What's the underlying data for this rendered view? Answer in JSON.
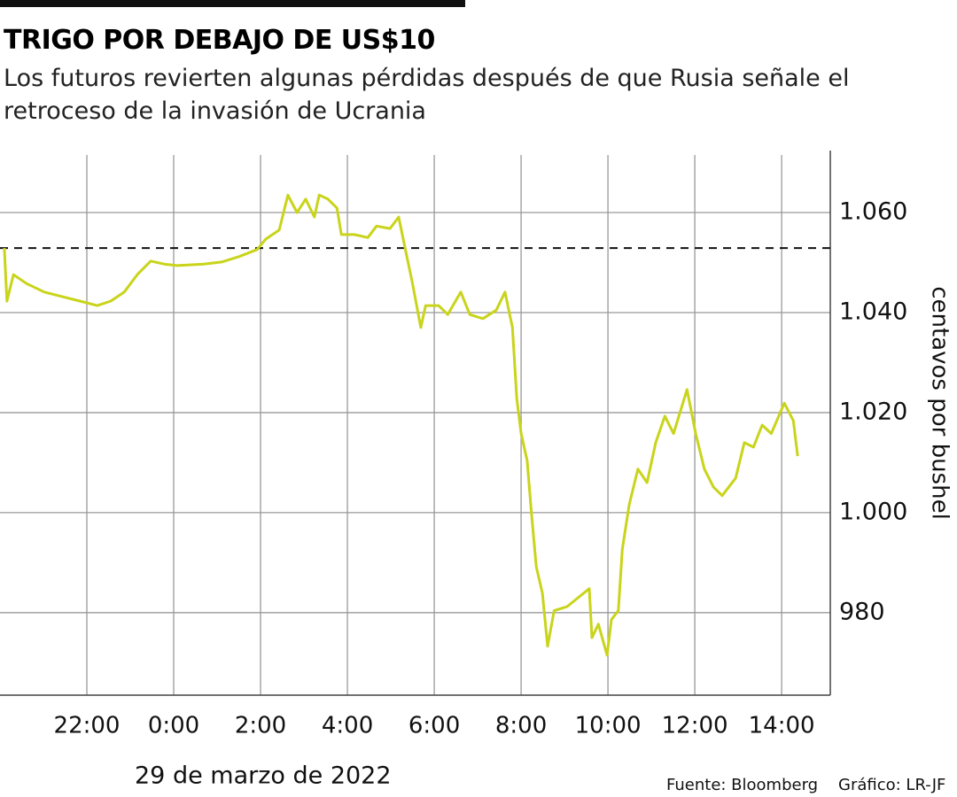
{
  "chart_data": {
    "type": "line",
    "title": "TRIGO POR DEBAJO DE US$10",
    "subtitle": "Los futuros revierten algunas pérdidas después de que Rusia señale el retroceso de la invasión de Ucrania",
    "ylabel": "centavos por bushel",
    "xlabel": "29 de marzo de 2022",
    "source": "Fuente: Bloomberg",
    "credit": "Gráfico: LR-JF",
    "x": [
      20.1,
      20.16,
      20.31,
      20.61,
      21.02,
      21.43,
      21.84,
      22.24,
      22.55,
      22.86,
      23.16,
      23.47,
      23.78,
      24.08,
      24.69,
      25.1,
      25.51,
      25.92,
      26.12,
      26.43,
      26.63,
      26.84,
      27.04,
      27.24,
      27.35,
      27.55,
      27.76,
      27.86,
      28.16,
      28.47,
      28.67,
      28.98,
      29.18,
      29.35,
      29.49,
      29.69,
      29.8,
      30.1,
      30.31,
      30.61,
      30.82,
      31.12,
      31.43,
      31.63,
      31.8,
      31.9,
      32.0,
      32.14,
      32.24,
      32.35,
      32.49,
      32.61,
      32.76,
      33.06,
      33.57,
      33.63,
      33.78,
      33.98,
      34.08,
      34.24,
      34.33,
      34.49,
      34.69,
      34.9,
      35.1,
      35.31,
      35.51,
      35.82,
      36.02,
      36.22,
      36.43,
      36.63,
      36.94,
      37.14,
      37.35,
      37.55,
      37.76,
      38.06,
      38.27,
      38.37
    ],
    "series": [
      {
        "color": "#c9d41a",
        "values": [
          1052.9,
          1042.3,
          1047.6,
          1045.8,
          1044.1,
          1043.2,
          1042.3,
          1041.4,
          1042.3,
          1044.1,
          1047.6,
          1050.3,
          1049.7,
          1049.4,
          1049.7,
          1050.1,
          1051.2,
          1052.6,
          1054.7,
          1056.5,
          1063.5,
          1060.0,
          1062.7,
          1059.1,
          1063.5,
          1062.7,
          1060.9,
          1055.6,
          1055.6,
          1055.0,
          1057.3,
          1056.8,
          1059.1,
          1052.0,
          1046.2,
          1037.0,
          1041.4,
          1041.4,
          1039.6,
          1044.1,
          1039.6,
          1038.8,
          1040.5,
          1044.1,
          1037.0,
          1022.8,
          1015.8,
          1010.4,
          999.8,
          989.2,
          983.9,
          973.3,
          980.4,
          981.2,
          984.8,
          975.0,
          977.7,
          971.5,
          978.6,
          980.4,
          992.7,
          1001.6,
          1008.7,
          1006.0,
          1014.0,
          1019.3,
          1015.8,
          1024.6,
          1015.8,
          1008.7,
          1005.1,
          1003.4,
          1006.9,
          1014.0,
          1013.1,
          1017.5,
          1015.8,
          1021.9,
          1018.4,
          1011.3
        ]
      }
    ],
    "reference_line": 1052.9,
    "xlim": [
      20,
      39.12
    ],
    "xticks": [
      {
        "value": 22,
        "label": "22:00"
      },
      {
        "value": 24,
        "label": "0:00"
      },
      {
        "value": 26,
        "label": "2:00"
      },
      {
        "value": 28,
        "label": "4:00"
      },
      {
        "value": 30,
        "label": "6:00"
      },
      {
        "value": 32,
        "label": "8:00"
      },
      {
        "value": 34,
        "label": "10:00"
      },
      {
        "value": 36,
        "label": "12:00"
      },
      {
        "value": 38,
        "label": "14:00"
      }
    ],
    "ylim": [
      963.5,
      1072.4
    ],
    "yticks": [
      980,
      {
        "value": 1000,
        "label": "1.000"
      },
      {
        "value": 1020,
        "label": "1.020"
      },
      {
        "value": 1040,
        "label": "1.040"
      },
      {
        "value": 1060,
        "label": "1.060"
      }
    ],
    "grid": true
  }
}
